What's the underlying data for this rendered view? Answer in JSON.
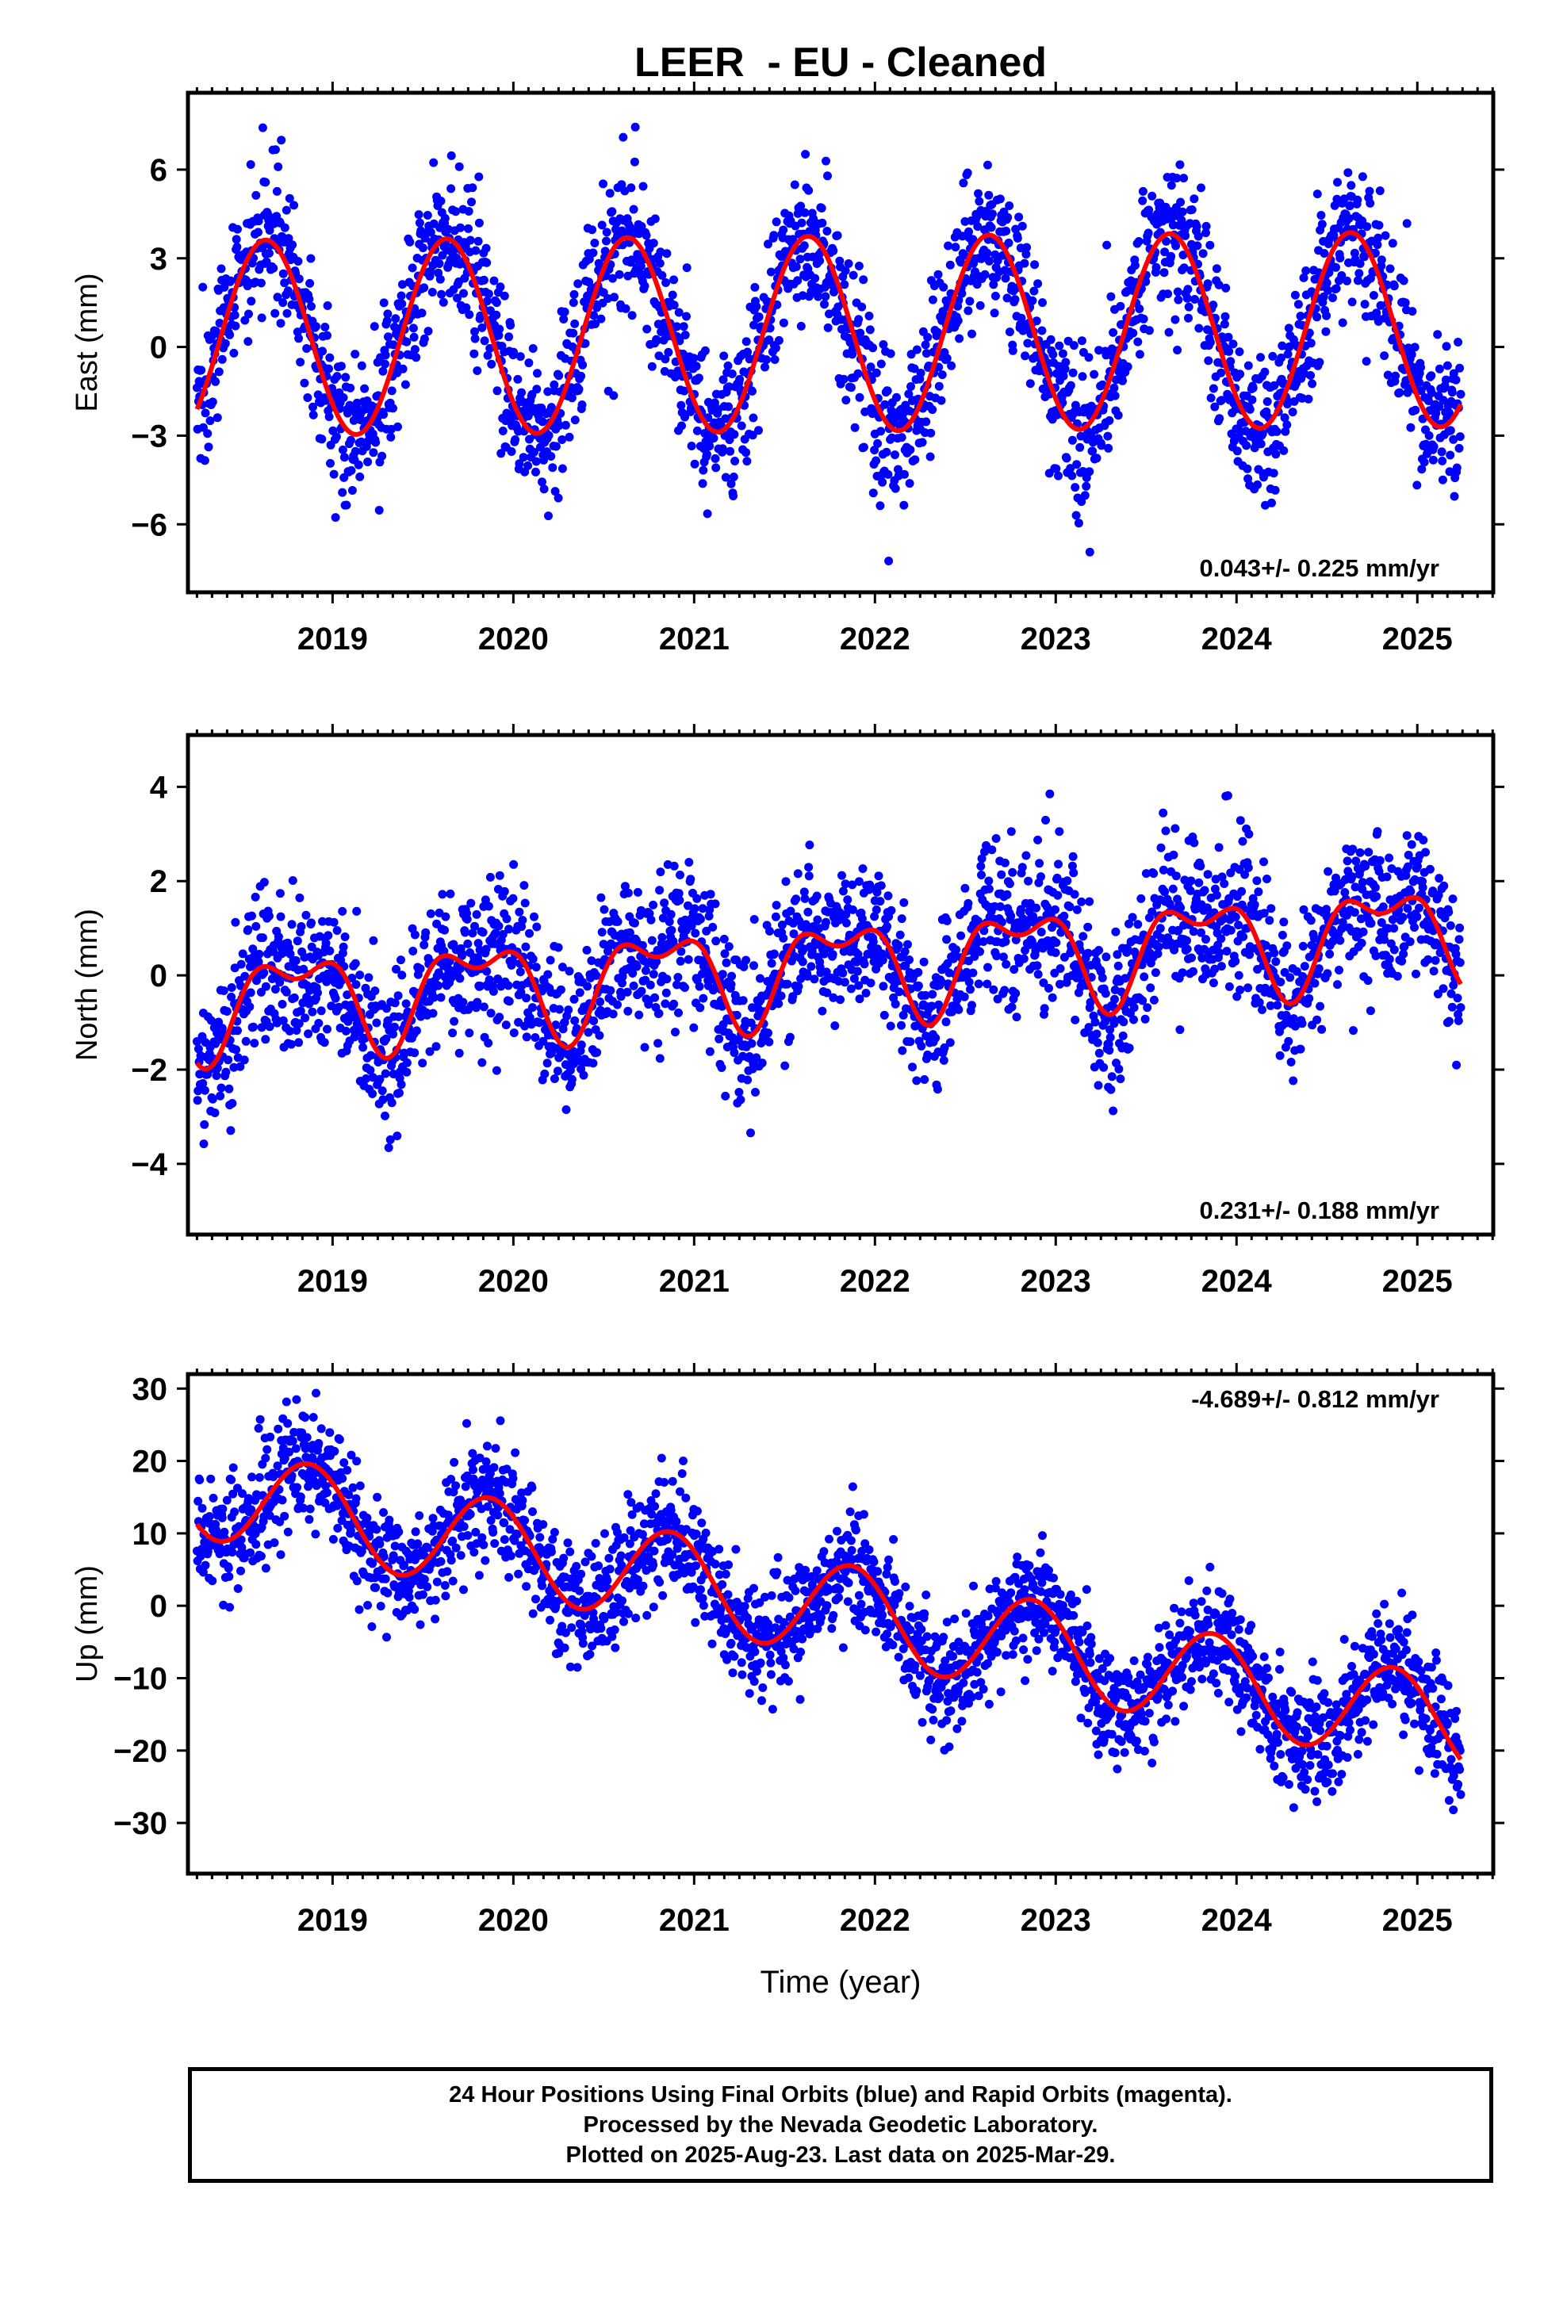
{
  "title": "LEER  - EU - Cleaned",
  "colors": {
    "data_points": "#0000ff",
    "model_fit": "#ff0000",
    "frame": "#000000"
  },
  "chart_data": [
    {
      "type": "scatter",
      "panel": "east",
      "ylabel": "East (mm)",
      "xlabel": "",
      "xlim": [
        2018.2,
        2025.42
      ],
      "ylim": [
        -8.3,
        8.6
      ],
      "xticks": [
        2019,
        2020,
        2021,
        2022,
        2023,
        2024,
        2025
      ],
      "xtick_labels": [
        "2019",
        "2020",
        "2021",
        "2022",
        "2023",
        "2024",
        "2025"
      ],
      "yticks": [
        -6,
        -3,
        0,
        3,
        6
      ],
      "ytick_labels": [
        "−6",
        "−3",
        "0",
        "3",
        "6"
      ],
      "rate_annotation": "0.043+/- 0.225 mm/yr",
      "annotation_position": "bottom-right",
      "x_start": 2018.25,
      "x_end": 2025.24,
      "model": {
        "offset": 0.3,
        "trend": 0.043,
        "ref_year": 2018.25,
        "amp1": 3.3,
        "phase1": 0.38,
        "amp2": 0.0,
        "phase2": 0.0
      },
      "noise": 1.3,
      "point_count": 2400,
      "series": [
        {
          "name": "Final Orbits",
          "style": "dots",
          "color": "#0000ff"
        },
        {
          "style": "line",
          "color": "#ff0000"
        }
      ]
    },
    {
      "type": "scatter",
      "panel": "north",
      "ylabel": "North (mm)",
      "xlabel": "",
      "xlim": [
        2018.2,
        2025.42
      ],
      "ylim": [
        -5.5,
        5.1
      ],
      "xticks": [
        2019,
        2020,
        2021,
        2022,
        2023,
        2024,
        2025
      ],
      "xtick_labels": [
        "2019",
        "2020",
        "2021",
        "2022",
        "2023",
        "2024",
        "2025"
      ],
      "yticks": [
        -4,
        -2,
        0,
        2,
        4
      ],
      "ytick_labels": [
        "−4",
        "−2",
        "0",
        "2",
        "4"
      ],
      "rate_annotation": "0.231+/- 0.188 mm/yr",
      "annotation_position": "bottom-right",
      "x_start": 2018.25,
      "x_end": 2025.24,
      "model": {
        "offset": -0.6,
        "trend": 0.231,
        "ref_year": 2018.25,
        "amp1": 0.9,
        "phase1": 0.55,
        "amp2": 0.5,
        "phase2": 0.3
      },
      "noise": 0.8,
      "point_count": 2400,
      "series": [
        {
          "name": "Final Orbits",
          "style": "dots",
          "color": "#0000ff"
        },
        {
          "style": "line",
          "color": "#ff0000"
        }
      ]
    },
    {
      "type": "scatter",
      "panel": "up",
      "ylabel": "Up (mm)",
      "xlabel": "Time (year)",
      "xlim": [
        2018.2,
        2025.42
      ],
      "ylim": [
        -37,
        32
      ],
      "xticks": [
        2019,
        2020,
        2021,
        2022,
        2023,
        2024,
        2025
      ],
      "xtick_labels": [
        "2019",
        "2020",
        "2021",
        "2022",
        "2023",
        "2024",
        "2025"
      ],
      "yticks": [
        -30,
        -20,
        -10,
        0,
        10,
        20,
        30
      ],
      "ytick_labels": [
        "−30",
        "−20",
        "−10",
        "0",
        "10",
        "20",
        "30"
      ],
      "rate_annotation": "-4.689+/- 0.812 mm/yr",
      "annotation_position": "top-right",
      "x_start": 2018.25,
      "x_end": 2025.24,
      "model": {
        "offset": 16.0,
        "trend": -4.689,
        "ref_year": 2018.25,
        "amp1": 6.5,
        "phase1": 0.62,
        "amp2": 0.0,
        "phase2": 0.0
      },
      "noise": 4.0,
      "point_count": 2400,
      "series": [
        {
          "name": "Final Orbits",
          "style": "dots",
          "color": "#0000ff"
        },
        {
          "style": "line",
          "color": "#ff0000"
        }
      ]
    }
  ],
  "caption": {
    "line1": "24 Hour Positions Using Final Orbits (blue) and Rapid Orbits (magenta).",
    "line2": "Processed by the Nevada Geodetic Laboratory.",
    "line3": "Plotted on 2025-Aug-23. Last data on 2025-Mar-29."
  }
}
